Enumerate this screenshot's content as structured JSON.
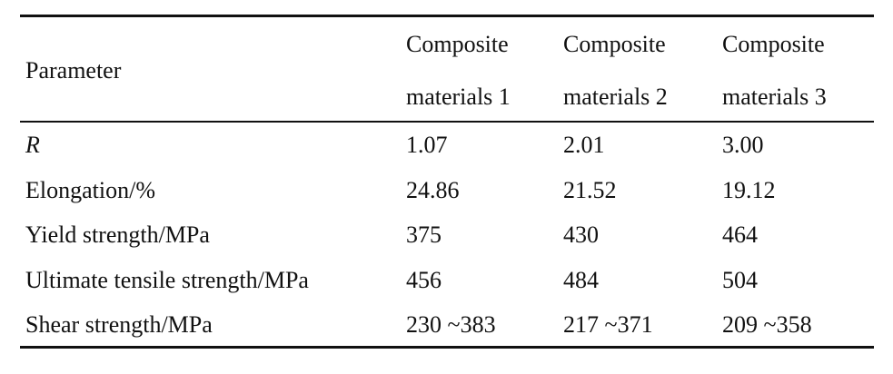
{
  "table": {
    "header": [
      "Parameter",
      "Composite materials 1",
      "Composite materials 2",
      "Composite materials 3"
    ],
    "rows": [
      [
        "R",
        "1.07",
        "2.01",
        "3.00"
      ],
      [
        "Elongation/%",
        "24.86",
        "21.52",
        "19.12"
      ],
      [
        "Yield strength/MPa",
        "375",
        "430",
        "464"
      ],
      [
        "Ultimate tensile strength/MPa",
        "456",
        "484",
        "504"
      ],
      [
        "Shear strength/MPa",
        "230 ~383",
        "217 ~371",
        "209 ~358"
      ]
    ]
  }
}
